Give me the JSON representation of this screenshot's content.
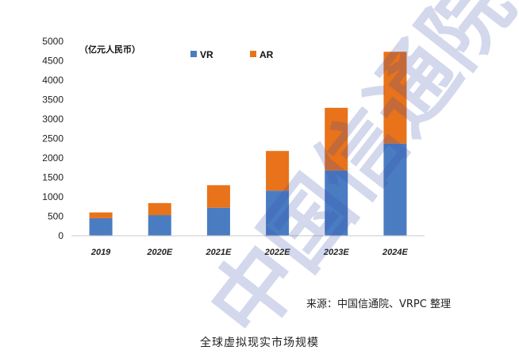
{
  "source_note": "来源：中国信通院、VRPC 整理",
  "caption": "全球虚拟现实市场规模",
  "watermark": "中国信通院",
  "colors": {
    "VR": "#4a7cc2",
    "AR": "#e8731a",
    "axis": "#c8c8c8"
  },
  "chart_data": {
    "type": "bar",
    "stacked": true,
    "unit_label": "（亿元人民币）",
    "categories": [
      "2019",
      "2020E",
      "2021E",
      "2022E",
      "2023E",
      "2024E"
    ],
    "series": [
      {
        "name": "VR",
        "values": [
          450,
          530,
          720,
          1160,
          1680,
          2370
        ]
      },
      {
        "name": "AR",
        "values": [
          150,
          310,
          580,
          1020,
          1610,
          2360
        ]
      }
    ],
    "ylim": [
      0,
      5000
    ],
    "yticks": [
      0,
      500,
      1000,
      1500,
      2000,
      2500,
      3000,
      3500,
      4000,
      4500,
      5000
    ],
    "legend_position": "top-center",
    "grid": false
  }
}
